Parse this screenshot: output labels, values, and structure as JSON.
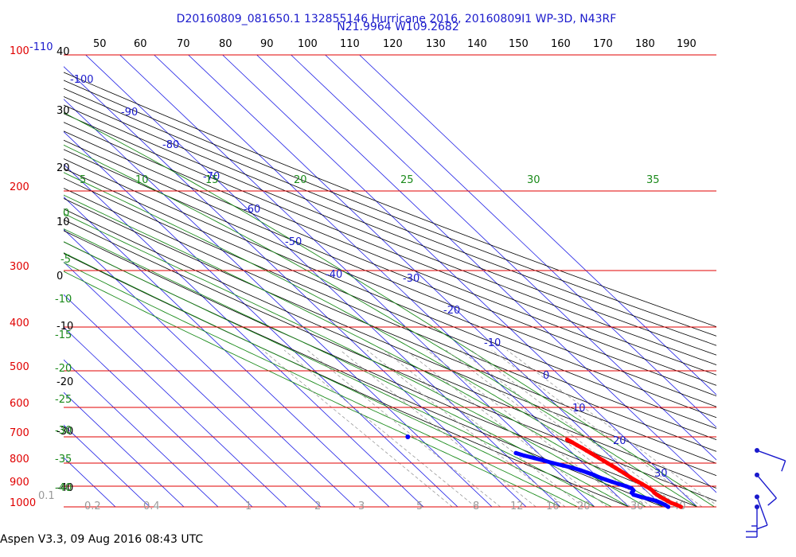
{
  "chart_data": {
    "type": "skew-t",
    "title": "D20160809_081650.1 132855146 Hurricane 2016, 20160809I1 WP-3D, N43RF",
    "subtitle": "N21.9964 W109.2682",
    "footer": "Aspen V3.3, 09 Aug 2016  08:43 UTC",
    "pressure_axis_labels": [
      "100",
      "200",
      "300",
      "400",
      "500",
      "600",
      "700",
      "800",
      "900",
      "1000"
    ],
    "height_axis_labels": [
      "40",
      "30",
      "20",
      "10",
      "0",
      "-10",
      "-20",
      "-30",
      "-40"
    ],
    "temperature_labels": [
      "-110",
      "-100",
      "-90",
      "-80",
      "-70",
      "-60",
      "-50",
      "-40",
      "-30",
      "-20",
      "-10",
      "0",
      "10",
      "20",
      "30"
    ],
    "theta_labels": [
      "50",
      "60",
      "70",
      "80",
      "90",
      "100",
      "110",
      "120",
      "130",
      "140",
      "150",
      "160",
      "170",
      "180",
      "190"
    ],
    "theta_e_labels": [
      "5",
      "10",
      "15",
      "20",
      "25",
      "30",
      "35"
    ],
    "secondary_left_labels": [
      "0",
      "-5",
      "-10",
      "-15",
      "-20",
      "-25",
      "-30",
      "-35",
      "-40"
    ],
    "mixing_ratio_labels": [
      "0.1",
      "0.2",
      "0.4",
      "1",
      "2",
      "3",
      "5",
      "8",
      "12",
      "16",
      "20",
      "30",
      "40"
    ],
    "series": [
      {
        "name": "",
        "color": "#ff0000",
        "points": [
          {
            "p": 1000,
            "t": 25.2
          },
          {
            "p": 990,
            "t": 24.6
          },
          {
            "p": 980,
            "t": 23.6
          },
          {
            "p": 970,
            "t": 23.1
          },
          {
            "p": 960,
            "t": 22.7
          },
          {
            "p": 950,
            "t": 22.2
          },
          {
            "p": 940,
            "t": 21.9
          },
          {
            "p": 930,
            "t": 21.8
          },
          {
            "p": 920,
            "t": 21.9
          },
          {
            "p": 910,
            "t": 21.7
          },
          {
            "p": 900,
            "t": 21.3
          },
          {
            "p": 890,
            "t": 20.9
          },
          {
            "p": 880,
            "t": 20.4
          },
          {
            "p": 870,
            "t": 19.9
          },
          {
            "p": 860,
            "t": 19.5
          },
          {
            "p": 850,
            "t": 19.2
          },
          {
            "p": 840,
            "t": 18.9
          },
          {
            "p": 830,
            "t": 18.5
          },
          {
            "p": 820,
            "t": 18.1
          },
          {
            "p": 810,
            "t": 17.7
          },
          {
            "p": 800,
            "t": 17.2
          },
          {
            "p": 790,
            "t": 16.8
          },
          {
            "p": 780,
            "t": 16.3
          },
          {
            "p": 770,
            "t": 15.9
          },
          {
            "p": 760,
            "t": 15.4
          },
          {
            "p": 750,
            "t": 14.9
          },
          {
            "p": 740,
            "t": 14.4
          },
          {
            "p": 730,
            "t": 13.8
          },
          {
            "p": 720,
            "t": 13.3
          },
          {
            "p": 710,
            "t": 12.6
          }
        ]
      },
      {
        "name": "",
        "color": "#0000ff",
        "points": [
          {
            "p": 1000,
            "t": 21.5
          },
          {
            "p": 990,
            "t": 21.2
          },
          {
            "p": 980,
            "t": 20.6
          },
          {
            "p": 970,
            "t": 19.8
          },
          {
            "p": 960,
            "t": 18.2
          },
          {
            "p": 950,
            "t": 16.5
          },
          {
            "p": 940,
            "t": 15.1
          },
          {
            "p": 930,
            "t": 15.2
          },
          {
            "p": 920,
            "t": 16.4
          },
          {
            "p": 910,
            "t": 16.5
          },
          {
            "p": 900,
            "t": 15.5
          },
          {
            "p": 890,
            "t": 14.1
          },
          {
            "p": 880,
            "t": 12.8
          },
          {
            "p": 870,
            "t": 11.6
          },
          {
            "p": 860,
            "t": 10.4
          },
          {
            "p": 850,
            "t": 9.6
          },
          {
            "p": 840,
            "t": 8.4
          },
          {
            "p": 830,
            "t": 7.2
          },
          {
            "p": 820,
            "t": 5.7
          },
          {
            "p": 810,
            "t": 3.5
          },
          {
            "p": 800,
            "t": 1.3
          },
          {
            "p": 790,
            "t": -0.6
          },
          {
            "p": 780,
            "t": -2.7
          },
          {
            "p": 770,
            "t": -4.8
          },
          {
            "p": 760,
            "t": -6.5
          }
        ]
      }
    ],
    "isolated_point": {
      "p": 700,
      "t": -33.1
    },
    "wind_barbs": [
      {
        "p": 750,
        "speed_kt": 10,
        "direction_deg": 110
      },
      {
        "p": 850,
        "speed_kt": 10,
        "direction_deg": 140
      },
      {
        "p": 950,
        "speed_kt": 10,
        "direction_deg": 160
      },
      {
        "p": 1000,
        "speed_kt": 25,
        "direction_deg": 180
      }
    ]
  }
}
